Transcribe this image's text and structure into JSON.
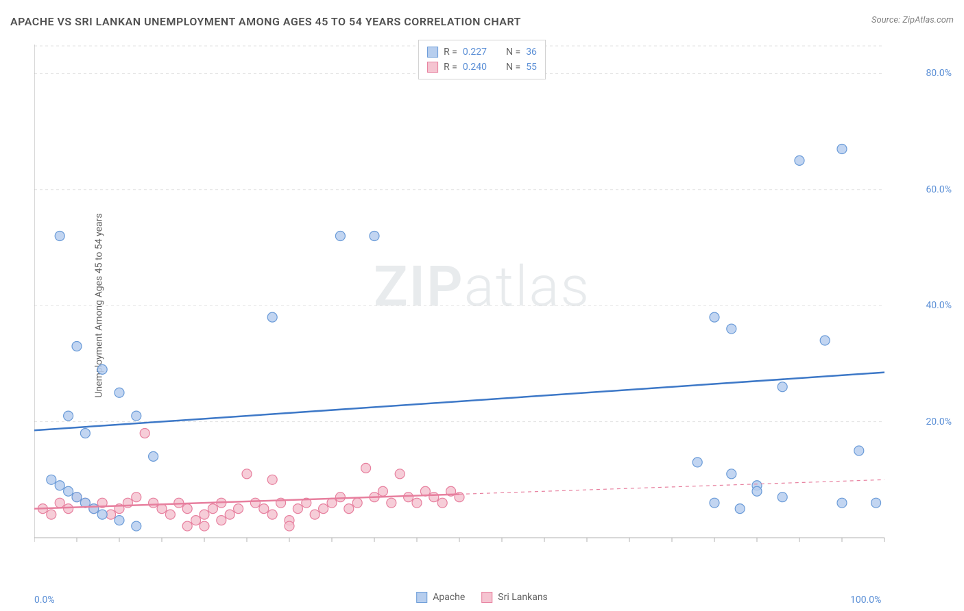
{
  "title": "APACHE VS SRI LANKAN UNEMPLOYMENT AMONG AGES 45 TO 54 YEARS CORRELATION CHART",
  "source_label": "Source: ZipAtlas.com",
  "watermark_bold": "ZIP",
  "watermark_light": "atlas",
  "ylabel": "Unemployment Among Ages 45 to 54 years",
  "chart": {
    "type": "scatter",
    "background_color": "#ffffff",
    "grid_color": "#e0e0e0",
    "text_color": "#606060",
    "value_color": "#5b8fd6",
    "xlim": [
      0,
      100
    ],
    "ylim": [
      0,
      85
    ],
    "xticks": [
      0,
      100
    ],
    "xtick_labels": [
      "0.0%",
      "100.0%"
    ],
    "yticks": [
      20,
      40,
      60,
      80
    ],
    "ytick_labels": [
      "20.0%",
      "40.0%",
      "60.0%",
      "80.0%"
    ],
    "marker_radius": 7,
    "marker_stroke_width": 1.2,
    "trend_line_width": 2.5,
    "series": [
      {
        "key": "apache",
        "label": "Apache",
        "fill_color": "#b7ceee",
        "stroke_color": "#6a9bd8",
        "line_color": "#3d78c7",
        "r_value": "0.227",
        "n_value": "36",
        "trend": {
          "x1": 0,
          "y1": 18.5,
          "x2": 100,
          "y2": 28.5,
          "dash": "none"
        },
        "points": [
          [
            3,
            52
          ],
          [
            5,
            33
          ],
          [
            4,
            21
          ],
          [
            6,
            18
          ],
          [
            8,
            29
          ],
          [
            10,
            25
          ],
          [
            12,
            21
          ],
          [
            14,
            14
          ],
          [
            2,
            10
          ],
          [
            3,
            9
          ],
          [
            4,
            8
          ],
          [
            5,
            7
          ],
          [
            6,
            6
          ],
          [
            7,
            5
          ],
          [
            8,
            4
          ],
          [
            10,
            3
          ],
          [
            12,
            2
          ],
          [
            28,
            38
          ],
          [
            36,
            52
          ],
          [
            40,
            52
          ],
          [
            80,
            38
          ],
          [
            82,
            36
          ],
          [
            78,
            13
          ],
          [
            82,
            11
          ],
          [
            85,
            9
          ],
          [
            88,
            26
          ],
          [
            90,
            65
          ],
          [
            95,
            67
          ],
          [
            93,
            34
          ],
          [
            80,
            6
          ],
          [
            83,
            5
          ],
          [
            88,
            7
          ],
          [
            95,
            6
          ],
          [
            99,
            6
          ],
          [
            97,
            15
          ],
          [
            85,
            8
          ]
        ]
      },
      {
        "key": "srilankans",
        "label": "Sri Lankans",
        "fill_color": "#f5c4d1",
        "stroke_color": "#e77f9e",
        "line_color": "#e77f9e",
        "r_value": "0.240",
        "n_value": "55",
        "trend": {
          "x1": 0,
          "y1": 5,
          "x2": 50,
          "y2": 7.5,
          "dash": "none"
        },
        "trend_ext": {
          "x1": 50,
          "y1": 7.5,
          "x2": 100,
          "y2": 10,
          "dash": "5,5"
        },
        "points": [
          [
            1,
            5
          ],
          [
            2,
            4
          ],
          [
            3,
            6
          ],
          [
            4,
            5
          ],
          [
            5,
            7
          ],
          [
            6,
            6
          ],
          [
            7,
            5
          ],
          [
            8,
            6
          ],
          [
            9,
            4
          ],
          [
            10,
            5
          ],
          [
            11,
            6
          ],
          [
            12,
            7
          ],
          [
            13,
            18
          ],
          [
            14,
            6
          ],
          [
            15,
            5
          ],
          [
            16,
            4
          ],
          [
            17,
            6
          ],
          [
            18,
            5
          ],
          [
            19,
            3
          ],
          [
            20,
            4
          ],
          [
            21,
            5
          ],
          [
            22,
            6
          ],
          [
            23,
            4
          ],
          [
            24,
            5
          ],
          [
            25,
            11
          ],
          [
            26,
            6
          ],
          [
            27,
            5
          ],
          [
            28,
            4
          ],
          [
            29,
            6
          ],
          [
            30,
            3
          ],
          [
            31,
            5
          ],
          [
            32,
            6
          ],
          [
            33,
            4
          ],
          [
            34,
            5
          ],
          [
            35,
            6
          ],
          [
            36,
            7
          ],
          [
            37,
            5
          ],
          [
            38,
            6
          ],
          [
            39,
            12
          ],
          [
            40,
            7
          ],
          [
            41,
            8
          ],
          [
            42,
            6
          ],
          [
            43,
            11
          ],
          [
            44,
            7
          ],
          [
            45,
            6
          ],
          [
            46,
            8
          ],
          [
            47,
            7
          ],
          [
            48,
            6
          ],
          [
            49,
            8
          ],
          [
            50,
            7
          ],
          [
            18,
            2
          ],
          [
            20,
            2
          ],
          [
            22,
            3
          ],
          [
            30,
            2
          ],
          [
            28,
            10
          ]
        ]
      }
    ],
    "legend_top": {
      "rows": [
        {
          "swatch_fill": "#b7ceee",
          "swatch_stroke": "#6a9bd8",
          "r_label": "R =",
          "r_value": "0.227",
          "n_label": "N =",
          "n_value": "36"
        },
        {
          "swatch_fill": "#f5c4d1",
          "swatch_stroke": "#e77f9e",
          "r_label": "R =",
          "r_value": "0.240",
          "n_label": "N =",
          "n_value": "55"
        }
      ]
    },
    "legend_bottom": {
      "items": [
        {
          "swatch_fill": "#b7ceee",
          "swatch_stroke": "#6a9bd8",
          "label": "Apache"
        },
        {
          "swatch_fill": "#f5c4d1",
          "swatch_stroke": "#e77f9e",
          "label": "Sri Lankans"
        }
      ]
    }
  }
}
